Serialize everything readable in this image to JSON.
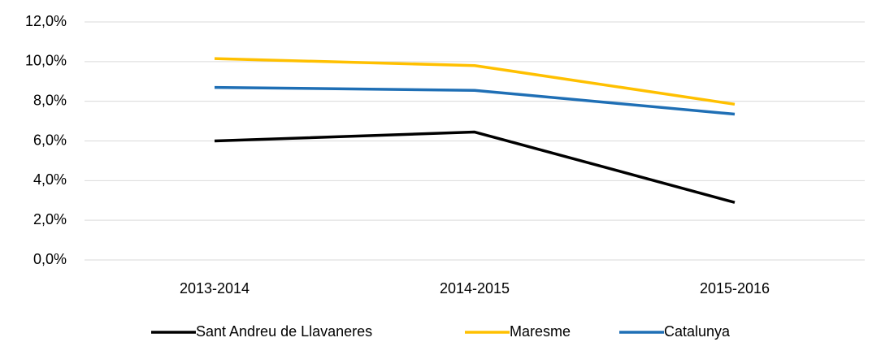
{
  "chart_data": {
    "type": "line",
    "categories": [
      "2013-2014",
      "2014-2015",
      "2015-2016"
    ],
    "series": [
      {
        "name": "Sant Andreu de Llavaneres",
        "color": "#000000",
        "values": [
          6.0,
          6.45,
          2.9
        ]
      },
      {
        "name": "Maresme",
        "color": "#ffc000",
        "values": [
          10.15,
          9.8,
          7.85
        ]
      },
      {
        "name": "Catalunya",
        "color": "#1f6fb5",
        "values": [
          8.7,
          8.55,
          7.35
        ]
      }
    ],
    "ylim": [
      0,
      12
    ],
    "yticks": [
      {
        "value": 0,
        "label": "0,0%"
      },
      {
        "value": 2,
        "label": "2,0%"
      },
      {
        "value": 4,
        "label": "4,0%"
      },
      {
        "value": 6,
        "label": "6,0%"
      },
      {
        "value": 8,
        "label": "8,0%"
      },
      {
        "value": 10,
        "label": "10,0%"
      },
      {
        "value": 12,
        "label": "12,0%"
      }
    ],
    "grid": true,
    "legend": "bottom"
  }
}
